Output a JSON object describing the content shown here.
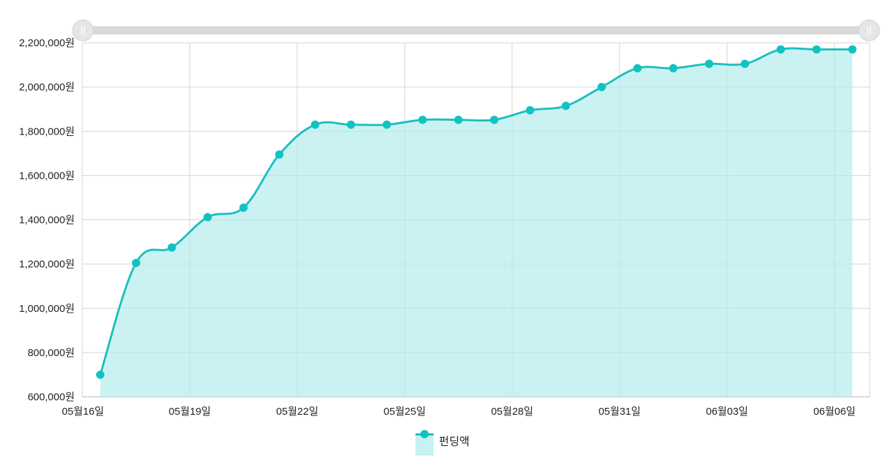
{
  "chart_data": {
    "type": "area",
    "x": [
      "05월16일",
      "05월17일",
      "05월18일",
      "05월19일",
      "05월20일",
      "05월21일",
      "05월22일",
      "05월23일",
      "05월24일",
      "05월25일",
      "05월26일",
      "05월27일",
      "05월28일",
      "05월29일",
      "05월30일",
      "05월31일",
      "06월01일",
      "06월02일",
      "06월03일",
      "06월04일",
      "06월05일",
      "06월06일"
    ],
    "series": [
      {
        "name": "펀딩액",
        "values": [
          700000,
          1205000,
          1275000,
          1412000,
          1455000,
          1695000,
          1830000,
          1830000,
          1830000,
          1852000,
          1852000,
          1852000,
          1895000,
          1915000,
          2000000,
          2085000,
          2085000,
          2105000,
          2105000,
          2170000,
          2170000,
          2170000
        ]
      }
    ],
    "x_tick_labels": [
      "05월16일",
      "05월19일",
      "05월22일",
      "05월25일",
      "05월28일",
      "05월31일",
      "06월03일",
      "06월06일"
    ],
    "y_tick_labels": [
      "600,000원",
      "800,000원",
      "1,000,000원",
      "1,200,000원",
      "1,400,000원",
      "1,600,000원",
      "1,800,000원",
      "2,000,000원",
      "2,200,000원"
    ],
    "ylim": [
      600000,
      2200000
    ],
    "grid": true,
    "legend_position": "bottom",
    "colors": {
      "line": "#1bbfbf",
      "point": "#12c2c2",
      "area": "#c8f1f1",
      "grid": "#e2e2e2",
      "slider": "#d9d9d9"
    },
    "has_range_slider": true
  }
}
